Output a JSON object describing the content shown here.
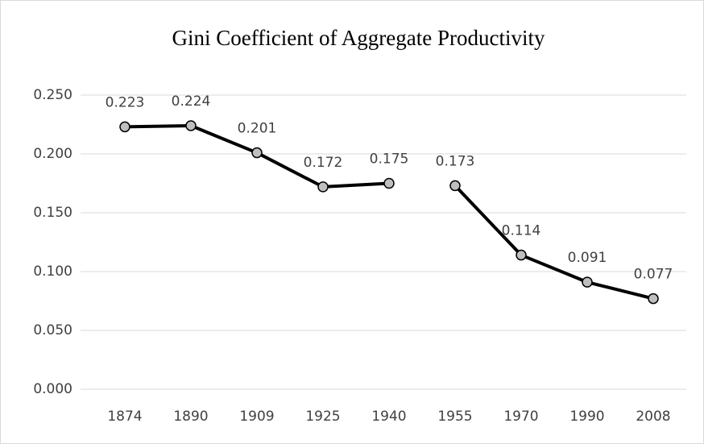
{
  "chart_data": {
    "type": "line",
    "title": "Gini Coefficient of Aggregate Productivity",
    "categories": [
      "1874",
      "1890",
      "1909",
      "1925",
      "1940",
      "1955",
      "1970",
      "1990",
      "2008"
    ],
    "series": [
      {
        "color": "#000000",
        "values": [
          0.223,
          0.224,
          0.201,
          0.172,
          0.175,
          null,
          null,
          null,
          null
        ]
      },
      {
        "color": "#000000",
        "values": [
          null,
          null,
          null,
          null,
          null,
          0.173,
          0.114,
          0.091,
          0.077
        ]
      }
    ],
    "ylim": [
      0,
      0.25
    ],
    "yticks": [
      {
        "value": 0,
        "label": "0.000"
      },
      {
        "value": 0.05,
        "label": "0.050"
      },
      {
        "value": 0.1,
        "label": "0.100"
      },
      {
        "value": 0.15,
        "label": "0.150"
      },
      {
        "value": 0.2,
        "label": "0.200"
      },
      {
        "value": 0.25,
        "label": "0.250"
      }
    ],
    "grid": true
  }
}
